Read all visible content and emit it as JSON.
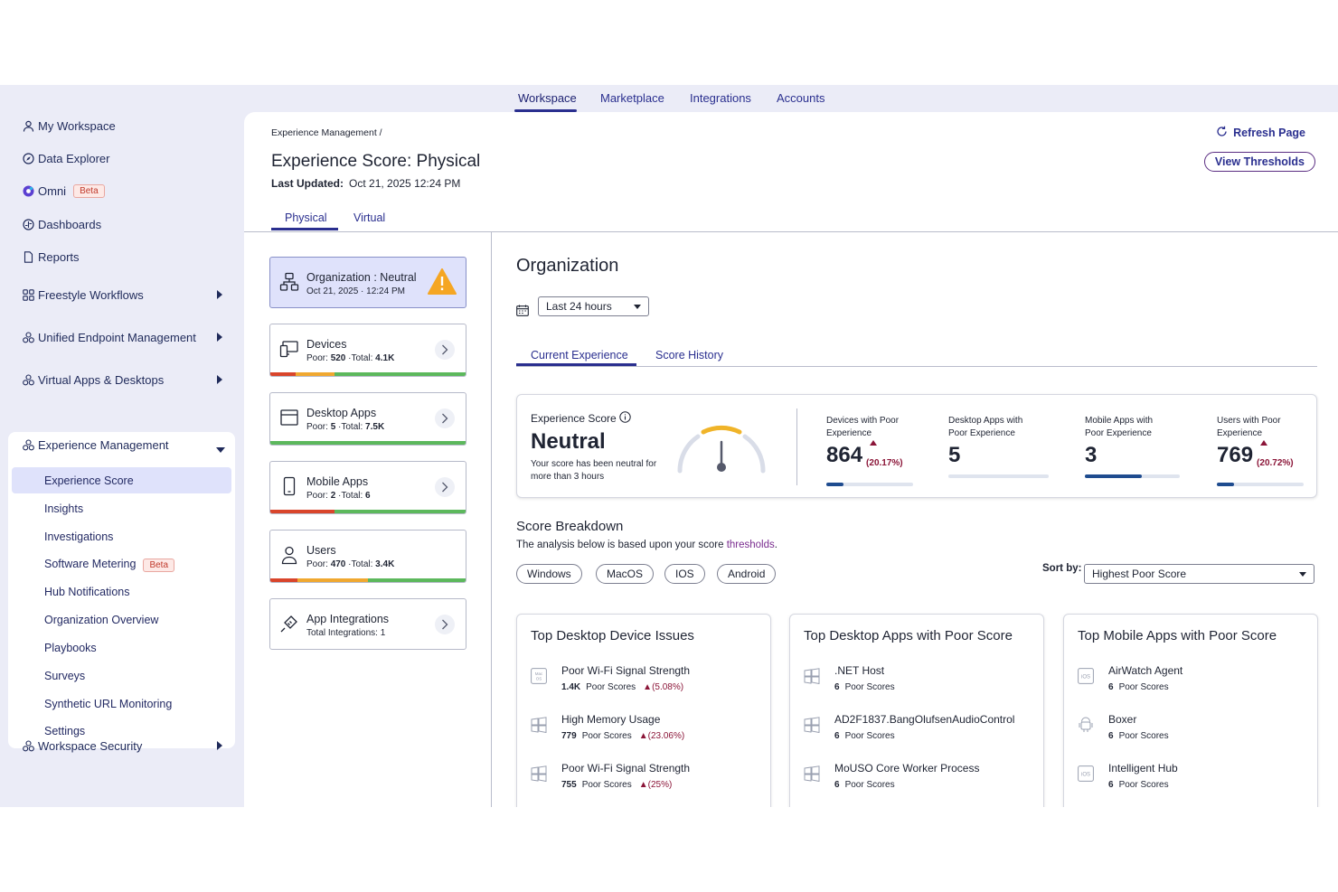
{
  "topnav": {
    "tabs": [
      "Workspace",
      "Marketplace",
      "Integrations",
      "Accounts"
    ],
    "active": "Workspace"
  },
  "sidebar": {
    "items": [
      {
        "label": "My Workspace",
        "icon": "person-icon"
      },
      {
        "label": "Data Explorer",
        "icon": "compass-icon"
      },
      {
        "label": "Omni",
        "icon": "omni-icon",
        "badge": "Beta"
      },
      {
        "label": "Dashboards",
        "icon": "dashboard-icon"
      },
      {
        "label": "Reports",
        "icon": "document-icon"
      },
      {
        "label": "Freestyle Workflows",
        "icon": "workflow-icon"
      },
      {
        "label": "Unified Endpoint Management",
        "icon": "cluster-icon"
      },
      {
        "label": "Virtual Apps & Desktops",
        "icon": "cluster-icon"
      },
      {
        "label": "Experience Management",
        "icon": "cluster-icon"
      },
      {
        "label": "Workspace Security",
        "icon": "cluster-icon"
      }
    ],
    "sub_items": [
      {
        "label": "Experience Score"
      },
      {
        "label": "Insights"
      },
      {
        "label": "Investigations"
      },
      {
        "label": "Software Metering",
        "badge": "Beta"
      },
      {
        "label": "Hub Notifications"
      },
      {
        "label": "Organization Overview"
      },
      {
        "label": "Playbooks"
      },
      {
        "label": "Surveys"
      },
      {
        "label": "Synthetic URL Monitoring"
      },
      {
        "label": "Settings"
      }
    ]
  },
  "header": {
    "breadcrumb": "Experience Management  /",
    "title": "Experience Score: Physical",
    "updated_label": "Last Updated:",
    "updated_value": "Oct 21, 2025 12:24 PM",
    "refresh": "Refresh Page",
    "thresholds": "View Thresholds",
    "tabs": [
      "Physical",
      "Virtual"
    ]
  },
  "cards": [
    {
      "title": "Organization : Neutral",
      "sub": "Oct 21, 2025 · 12:24 PM",
      "icon": "org-chart-icon"
    },
    {
      "title": "Devices",
      "sub_bold": "520",
      "sub_pre": "Poor: ",
      "sub_post": " ·Total: ",
      "sub_total": "4.1K",
      "icon": "devices-icon",
      "bar": [
        0.13,
        0.2,
        0.67
      ]
    },
    {
      "title": "Desktop Apps",
      "sub_pre": "Poor: ",
      "sub_bold": "5",
      "sub_post": " ·Total: ",
      "sub_total": "7.5K",
      "icon": "window-icon",
      "bar": [
        0,
        0,
        1
      ]
    },
    {
      "title": "Mobile Apps",
      "sub_pre": "Poor: ",
      "sub_bold": "2",
      "sub_post": " ·Total: ",
      "sub_total": "6",
      "icon": "mobile-icon",
      "bar": [
        0.33,
        0.0,
        0.67
      ]
    },
    {
      "title": "Users",
      "sub_pre": "Poor: ",
      "sub_bold": "470",
      "sub_post": " ·Total: ",
      "sub_total": "3.4K",
      "icon": "user-icon",
      "bar": [
        0.14,
        0.36,
        0.5
      ]
    },
    {
      "title": "App Integrations",
      "sub": "Total Integrations: 1",
      "icon": "plug-icon"
    }
  ],
  "org": {
    "title": "Organization",
    "range": "Last 24 hours",
    "tabs": [
      "Current Experience",
      "Score History"
    ],
    "score_label": "Experience Score",
    "score_value": "Neutral",
    "score_desc": "Your score has been neutral for more than 3 hours",
    "metrics": [
      {
        "label": "Devices with Poor Experience",
        "value": "864",
        "pct": "(20.17%)",
        "fill": 0.2
      },
      {
        "label": "Desktop Apps with Poor Experience",
        "value": "5",
        "pct": "",
        "fill": 0.0
      },
      {
        "label": "Mobile Apps with Poor Experience",
        "value": "3",
        "pct": "",
        "fill": 0.6
      },
      {
        "label": "Users with Poor Experience",
        "value": "769",
        "pct": "(20.72%)",
        "fill": 0.2
      }
    ]
  },
  "breakdown": {
    "title": "Score Breakdown",
    "sub_pre": "The analysis below is based upon your score ",
    "sub_link": "thresholds",
    "sub_post": ".",
    "chips": [
      "Windows",
      "MacOS",
      "IOS",
      "Android"
    ],
    "sort_label": "Sort by:",
    "sort_value": "Highest Poor Score"
  },
  "panels": [
    {
      "title": "Top Desktop Device Issues",
      "rows": [
        {
          "name": "Poor Wi-Fi Signal Strength",
          "count": "1.4K",
          "label": "Poor Scores",
          "pct": "(5.08%)",
          "icon": "macos-icon"
        },
        {
          "name": "High Memory Usage",
          "count": "779",
          "label": "Poor Scores",
          "pct": "(23.06%)",
          "icon": "windows-icon"
        },
        {
          "name": "Poor Wi-Fi Signal Strength",
          "count": "755",
          "label": "Poor Scores",
          "pct": "(25%)",
          "icon": "windows-icon"
        }
      ]
    },
    {
      "title": "Top Desktop Apps with Poor Score",
      "rows": [
        {
          "name": ".NET Host",
          "count": "6",
          "label": "Poor Scores",
          "pct": "",
          "icon": "windows-icon"
        },
        {
          "name": "AD2F1837.BangOlufsenAudioControl",
          "count": "6",
          "label": "Poor Scores",
          "pct": "",
          "icon": "windows-icon"
        },
        {
          "name": "MoUSO Core Worker Process",
          "count": "6",
          "label": "Poor Scores",
          "pct": "",
          "icon": "windows-icon"
        }
      ]
    },
    {
      "title": "Top Mobile Apps with Poor Score",
      "rows": [
        {
          "name": "AirWatch Agent",
          "count": "6",
          "label": "Poor Scores",
          "pct": "",
          "icon": "ios-icon"
        },
        {
          "name": "Boxer",
          "count": "6",
          "label": "Poor Scores",
          "pct": "",
          "icon": "android-icon"
        },
        {
          "name": "Intelligent Hub",
          "count": "6",
          "label": "Poor Scores",
          "pct": "",
          "icon": "ios-icon"
        }
      ]
    }
  ],
  "colors": {
    "accent": "#2a2f8f",
    "poor": "#d9452b",
    "neutral": "#f0a830",
    "good": "#5cb85c",
    "alert": "#8b1538"
  }
}
